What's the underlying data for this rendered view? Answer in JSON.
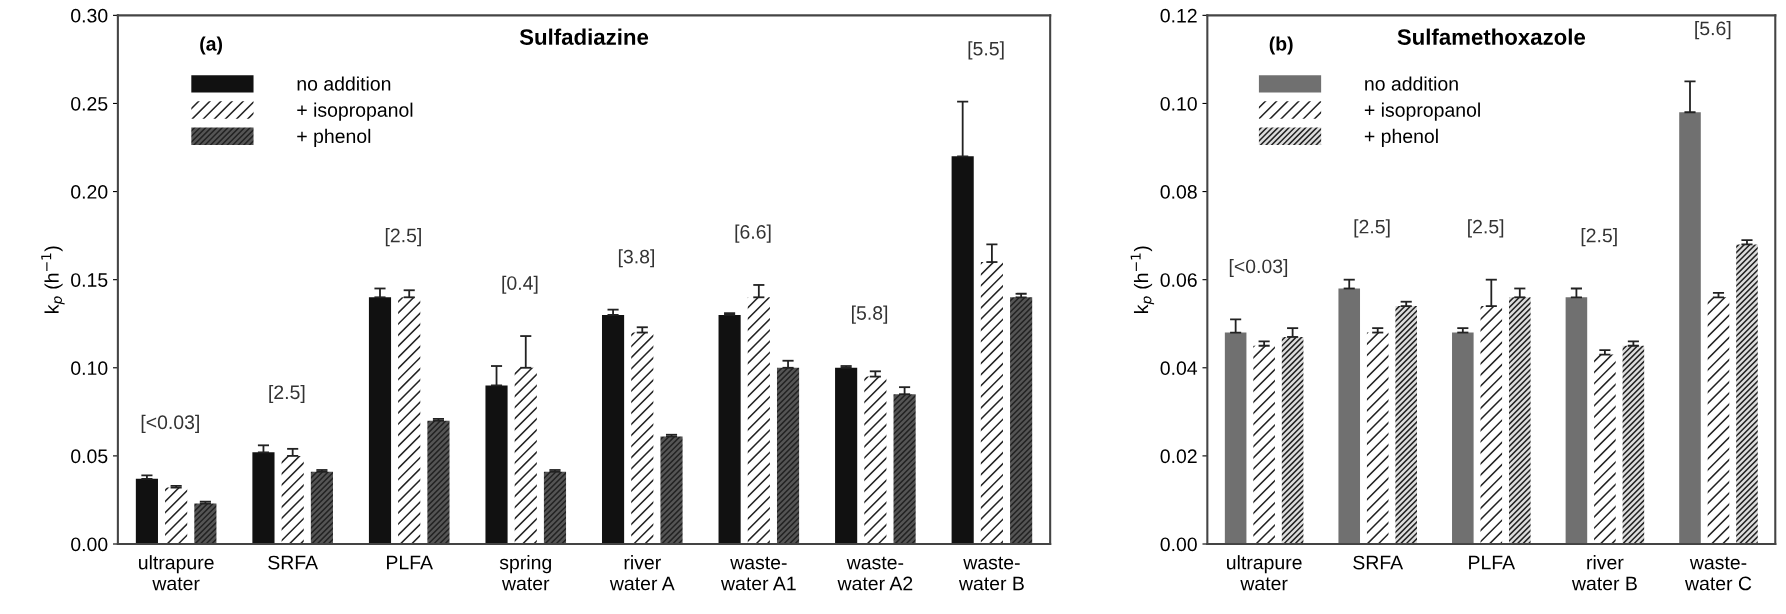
{
  "chart_data": [
    {
      "type": "bar",
      "title": "Sulfadiazine",
      "ylabel": "k$_{p}$ (h$^{−1}$)",
      "categories": [
        "ultrapure\nwater",
        "SRFA",
        "PLFA",
        "spring\nwater",
        "river\nwater A",
        "waste-\nwater A1",
        "waste-\nwater A2",
        "waste-\nwater B"
      ],
      "series": [
        {
          "name": "no addition",
          "color": "#111111",
          "values": [
            0.037,
            0.052,
            0.14,
            0.09,
            0.13,
            0.13,
            0.1,
            0.22
          ],
          "errors": [
            [
              0.037,
              0.039
            ],
            [
              0.052,
              0.056
            ],
            [
              0.14,
              0.145
            ],
            [
              0.09,
              0.101
            ],
            [
              0.13,
              0.133
            ],
            [
              0.13,
              0.131
            ],
            [
              0.1,
              0.101
            ],
            [
              0.22,
              0.251
            ]
          ]
        },
        {
          "name": "+ isopropanol",
          "color": "#ffffff",
          "values": [
            0.032,
            0.05,
            0.14,
            0.1,
            0.12,
            0.14,
            0.095,
            0.16
          ],
          "errors": [
            [
              0.032,
              0.033
            ],
            [
              0.05,
              0.054
            ],
            [
              0.14,
              0.144
            ],
            [
              0.1,
              0.118
            ],
            [
              0.12,
              0.123
            ],
            [
              0.14,
              0.147
            ],
            [
              0.095,
              0.098
            ],
            [
              0.16,
              0.17
            ]
          ]
        },
        {
          "name": "+ phenol",
          "color": "#555555",
          "values": [
            0.023,
            0.041,
            0.07,
            0.041,
            0.061,
            0.1,
            0.085,
            0.14
          ],
          "errors": [
            [
              0.023,
              0.024
            ],
            [
              0.041,
              0.042
            ],
            [
              0.07,
              0.071
            ],
            [
              0.041,
              0.042
            ],
            [
              0.061,
              0.062
            ],
            [
              0.1,
              0.104
            ],
            [
              0.085,
              0.089
            ],
            [
              0.14,
              0.142
            ]
          ]
        }
      ],
      "ylim": [
        0,
        0.3
      ],
      "yticks": [
        {
          "value": 0,
          "label": "0.00"
        },
        {
          "value": 0.05,
          "label": "0.05"
        },
        {
          "value": 0.1,
          "label": "0.10"
        },
        {
          "value": 0.15,
          "label": "0.15"
        },
        {
          "value": 0.2,
          "label": "0.20"
        },
        {
          "value": 0.25,
          "label": "0.25"
        },
        {
          "value": 0.3,
          "label": "0.30"
        }
      ],
      "legend": "top left",
      "grid": false,
      "annotations": [
        "(a)",
        "[<0.03]",
        "[2.5]",
        "[2.5]",
        "[0.4]",
        "[3.8]",
        "[6.6]",
        "[5.8]",
        "[5.5]"
      ]
    },
    {
      "type": "bar",
      "title": "Sulfamethoxazole",
      "ylabel": "k$_{p}$ (h$^{−1}$)",
      "categories": [
        "ultrapure\nwater",
        "SRFA",
        "PLFA",
        "river\nwater B",
        "waste-\nwater C"
      ],
      "series": [
        {
          "name": "no addition",
          "color": "#707070",
          "values": [
            0.048,
            0.058,
            0.048,
            0.056,
            0.098
          ],
          "errors": [
            [
              0.048,
              0.051
            ],
            [
              0.058,
              0.06
            ],
            [
              0.048,
              0.049
            ],
            [
              0.056,
              0.058
            ],
            [
              0.098,
              0.105
            ]
          ]
        },
        {
          "name": "+ isopropanol",
          "color": "#ffffff",
          "values": [
            0.045,
            0.048,
            0.054,
            0.043,
            0.056
          ],
          "errors": [
            [
              0.045,
              0.046
            ],
            [
              0.048,
              0.049
            ],
            [
              0.054,
              0.06
            ],
            [
              0.043,
              0.044
            ],
            [
              0.056,
              0.057
            ]
          ]
        },
        {
          "name": "+ phenol",
          "color": "#dddddd",
          "values": [
            0.047,
            0.054,
            0.056,
            0.045,
            0.068
          ],
          "errors": [
            [
              0.047,
              0.049
            ],
            [
              0.054,
              0.055
            ],
            [
              0.056,
              0.058
            ],
            [
              0.045,
              0.046
            ],
            [
              0.068,
              0.069
            ]
          ]
        }
      ],
      "ylim": [
        0,
        0.12
      ],
      "yticks": [
        {
          "value": 0,
          "label": "0.00"
        },
        {
          "value": 0.02,
          "label": "0.02"
        },
        {
          "value": 0.04,
          "label": "0.04"
        },
        {
          "value": 0.06,
          "label": "0.06"
        },
        {
          "value": 0.08,
          "label": "0.08"
        },
        {
          "value": 0.1,
          "label": "0.10"
        },
        {
          "value": 0.12,
          "label": "0.12"
        }
      ],
      "legend": "top left",
      "grid": false,
      "annotations": [
        "(b)",
        "[<0.03]",
        "[2.5]",
        "[2.5]",
        "[2.5]",
        "[5.6]"
      ]
    }
  ]
}
